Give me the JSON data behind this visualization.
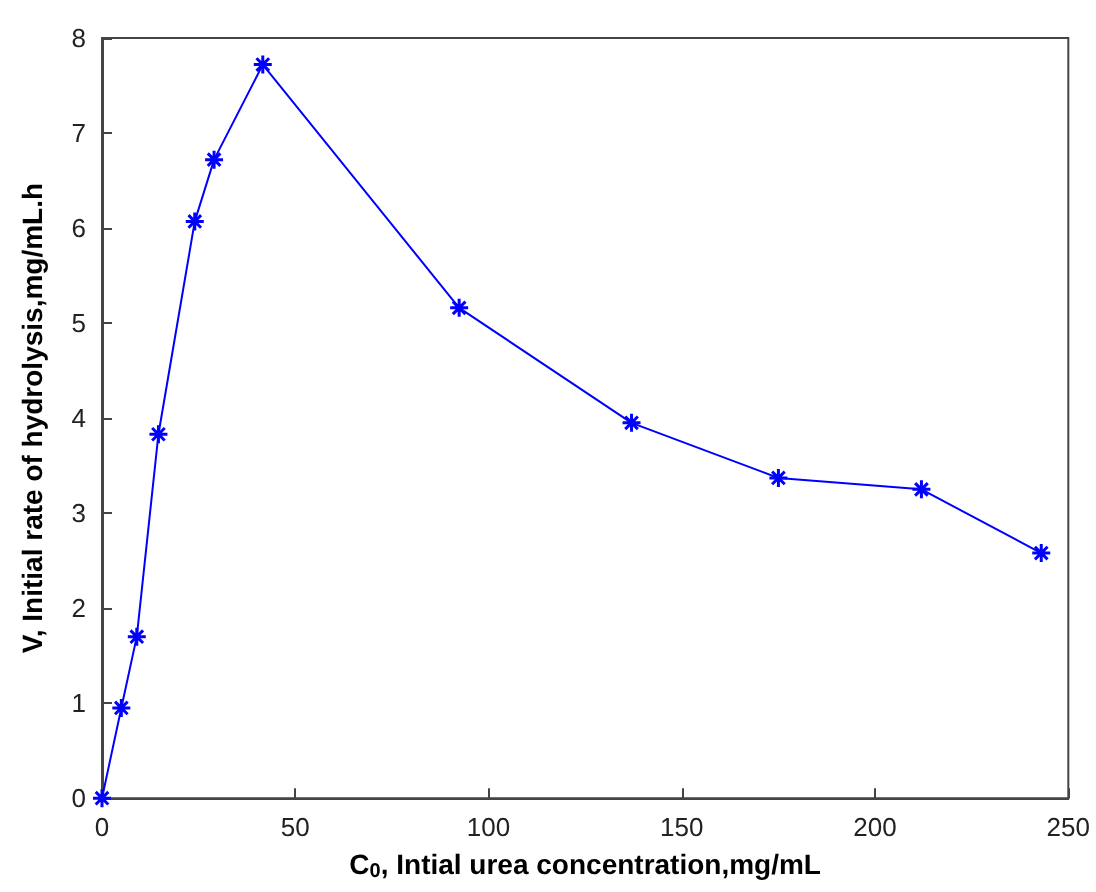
{
  "chart_data": {
    "type": "line",
    "xlabel": "C$_{0}$, Intial urea concentration,mg/mL",
    "ylabel": "V, Initial rate of hydrolysis,mg/mL.h",
    "x": [
      0,
      5,
      9,
      14.6,
      24,
      29,
      41.6,
      92.4,
      137,
      175,
      212,
      243
    ],
    "series": [
      {
        "color": "#0000ff",
        "values": [
          0,
          0.95,
          1.7,
          3.83,
          6.07,
          6.72,
          7.72,
          5.16,
          3.95,
          3.37,
          3.25,
          2.58
        ]
      }
    ],
    "xlim": [
      0,
      250
    ],
    "xticks": [
      0,
      50,
      100,
      150,
      200,
      250
    ],
    "ylim": [
      0,
      8
    ],
    "yticks": [
      0,
      1,
      2,
      3,
      4,
      5,
      6,
      7,
      8
    ],
    "grid": false,
    "marker": "cross",
    "line_style": "solid"
  }
}
